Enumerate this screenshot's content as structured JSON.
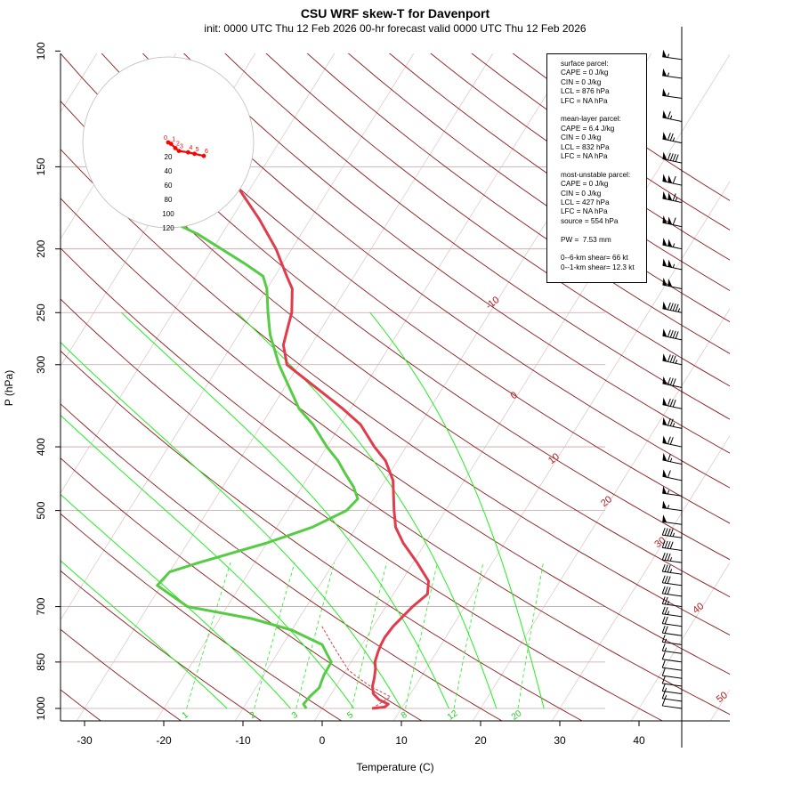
{
  "title": "CSU WRF skew-T for Davenport",
  "subtitle": "init: 0000 UTC Thu 12 Feb 2026     00-hr forecast valid 0000 UTC Thu 12 Feb 2026",
  "colors": {
    "temperature": "#e03c4b",
    "dewpoint": "#55cc44",
    "isotherm": "#8b1a1a",
    "dry_adiabat": "#8b1a1a",
    "moist_adiabat": "#22ee22",
    "mixing_ratio": "#22ee22",
    "hodograph": "#ff0000"
  },
  "chart_data": {
    "type": "line",
    "xlabel": "Temperature (C)",
    "ylabel": "P (hPa)",
    "x_ticks": [
      -30,
      -20,
      -10,
      0,
      10,
      20,
      30,
      40
    ],
    "y_ticks": [
      100,
      150,
      200,
      250,
      300,
      400,
      500,
      700,
      850,
      1000
    ],
    "x_range": [
      -33,
      52
    ],
    "y_range": [
      1050,
      100
    ],
    "y_scale": "log",
    "isotherm_labels": [
      "-10",
      "0",
      "10",
      "20",
      "30",
      "40",
      "50"
    ],
    "mixing_ratio_labels": [
      "1",
      "2",
      "3",
      "5",
      "8",
      "12",
      "20"
    ],
    "series": [
      {
        "key": "temperature",
        "points": [
          [
            1000,
            6.3
          ],
          [
            995,
            7.8
          ],
          [
            985,
            8.0
          ],
          [
            970,
            6.5
          ],
          [
            950,
            5.3
          ],
          [
            925,
            4.6
          ],
          [
            900,
            4.2
          ],
          [
            870,
            3.6
          ],
          [
            850,
            3.0
          ],
          [
            820,
            2.6
          ],
          [
            800,
            2.4
          ],
          [
            780,
            2.3
          ],
          [
            750,
            2.5
          ],
          [
            700,
            3.4
          ],
          [
            670,
            4.3
          ],
          [
            640,
            3.4
          ],
          [
            600,
            0.5
          ],
          [
            560,
            -2.8
          ],
          [
            530,
            -5.0
          ],
          [
            500,
            -6.5
          ],
          [
            450,
            -9.0
          ],
          [
            420,
            -11.5
          ],
          [
            400,
            -14.0
          ],
          [
            370,
            -17.5
          ],
          [
            350,
            -21.0
          ],
          [
            330,
            -25.0
          ],
          [
            300,
            -31.5
          ],
          [
            280,
            -33.5
          ],
          [
            260,
            -34.5
          ],
          [
            250,
            -35.0
          ],
          [
            230,
            -36.8
          ],
          [
            220,
            -38.5
          ],
          [
            200,
            -42.0
          ],
          [
            180,
            -46.5
          ],
          [
            160,
            -52.0
          ],
          [
            140,
            -57.5
          ],
          [
            120,
            -63.5
          ],
          [
            105,
            -68.0
          ]
        ]
      },
      {
        "key": "dewpoint",
        "points": [
          [
            1000,
            -2.0
          ],
          [
            985,
            -2.7
          ],
          [
            960,
            -2.5
          ],
          [
            930,
            -2.0
          ],
          [
            890,
            -2.4
          ],
          [
            850,
            -2.5
          ],
          [
            830,
            -3.5
          ],
          [
            800,
            -5.0
          ],
          [
            760,
            -10.0
          ],
          [
            730,
            -16.0
          ],
          [
            700,
            -25.0
          ],
          [
            650,
            -30.5
          ],
          [
            620,
            -30.0
          ],
          [
            600,
            -27.0
          ],
          [
            560,
            -20.0
          ],
          [
            530,
            -15.5
          ],
          [
            500,
            -12.5
          ],
          [
            480,
            -12.0
          ],
          [
            460,
            -13.5
          ],
          [
            440,
            -15.5
          ],
          [
            420,
            -17.5
          ],
          [
            400,
            -20.0
          ],
          [
            370,
            -23.5
          ],
          [
            350,
            -26.5
          ],
          [
            320,
            -30.0
          ],
          [
            300,
            -32.5
          ],
          [
            270,
            -36.0
          ],
          [
            250,
            -38.0
          ],
          [
            230,
            -40.0
          ],
          [
            220,
            -41.5
          ],
          [
            210,
            -45.0
          ],
          [
            190,
            -53.0
          ],
          [
            175,
            -61.0
          ],
          [
            165,
            -68.0
          ],
          [
            160,
            -69.0
          ]
        ]
      },
      {
        "key": "surface_parcel",
        "points": [
          [
            1000,
            6.3
          ],
          [
            960,
            7.7
          ],
          [
            925,
            4.3
          ],
          [
            900,
            2.3
          ],
          [
            876,
            0.4
          ],
          [
            850,
            -1.0
          ],
          [
            800,
            -3.7
          ],
          [
            750,
            -6.5
          ]
        ]
      }
    ],
    "hodograph": {
      "rings": [
        20,
        40,
        60,
        80,
        100,
        120
      ],
      "labels": [
        "0",
        "1",
        "2",
        "3",
        "4",
        "5",
        "6"
      ]
    },
    "wind_barbs": [
      {
        "p": 1000,
        "speed": 10
      },
      {
        "p": 975,
        "speed": 15
      },
      {
        "p": 950,
        "speed": 15
      },
      {
        "p": 925,
        "speed": 10
      },
      {
        "p": 900,
        "speed": 10
      },
      {
        "p": 875,
        "speed": 10
      },
      {
        "p": 850,
        "speed": 10
      },
      {
        "p": 825,
        "speed": 15
      },
      {
        "p": 800,
        "speed": 15
      },
      {
        "p": 775,
        "speed": 20
      },
      {
        "p": 750,
        "speed": 20
      },
      {
        "p": 725,
        "speed": 25
      },
      {
        "p": 700,
        "speed": 25
      },
      {
        "p": 675,
        "speed": 30
      },
      {
        "p": 650,
        "speed": 30
      },
      {
        "p": 625,
        "speed": 35
      },
      {
        "p": 600,
        "speed": 35
      },
      {
        "p": 575,
        "speed": 40
      },
      {
        "p": 550,
        "speed": 45
      },
      {
        "p": 525,
        "speed": 50
      },
      {
        "p": 500,
        "speed": 55
      },
      {
        "p": 475,
        "speed": 55
      },
      {
        "p": 450,
        "speed": 60
      },
      {
        "p": 425,
        "speed": 65
      },
      {
        "p": 400,
        "speed": 70
      },
      {
        "p": 375,
        "speed": 75
      },
      {
        "p": 350,
        "speed": 80
      },
      {
        "p": 325,
        "speed": 80
      },
      {
        "p": 300,
        "speed": 85
      },
      {
        "p": 275,
        "speed": 90
      },
      {
        "p": 250,
        "speed": 95
      },
      {
        "p": 230,
        "speed": 100
      },
      {
        "p": 215,
        "speed": 105
      },
      {
        "p": 200,
        "speed": 105
      },
      {
        "p": 185,
        "speed": 110
      },
      {
        "p": 170,
        "speed": 115
      },
      {
        "p": 160,
        "speed": 110
      },
      {
        "p": 148,
        "speed": 90
      },
      {
        "p": 138,
        "speed": 75
      },
      {
        "p": 128,
        "speed": 65
      },
      {
        "p": 118,
        "speed": 55
      },
      {
        "p": 110,
        "speed": 55
      },
      {
        "p": 103,
        "speed": 55
      }
    ]
  },
  "info_box": {
    "surface": {
      "header": "surface parcel:",
      "cape": "CAPE = 0 J/kg",
      "cin": "CIN = 0 J/kg",
      "lcl": "LCL = 876 hPa",
      "lfc": "LFC = NA hPa"
    },
    "mean_layer": {
      "header": "mean-layer parcel:",
      "cape": "CAPE = 6.4 J/kg",
      "cin": "CIN = 0 J/kg",
      "lcl": "LCL = 832 hPa",
      "lfc": "LFC = NA hPa"
    },
    "most_unstable": {
      "header": "most-unstable parcel:",
      "cape": "CAPE = 0 J/kg",
      "cin": "CIN = 0 J/kg",
      "lcl": "LCL = 427 hPa",
      "lfc": "LFC = NA hPa",
      "source": "source = 554 hPa"
    },
    "pw": "PW =  7.53 mm",
    "shear6": "0--6-km shear= 66 kt",
    "shear1": "0--1-km shear= 12.3 kt"
  }
}
